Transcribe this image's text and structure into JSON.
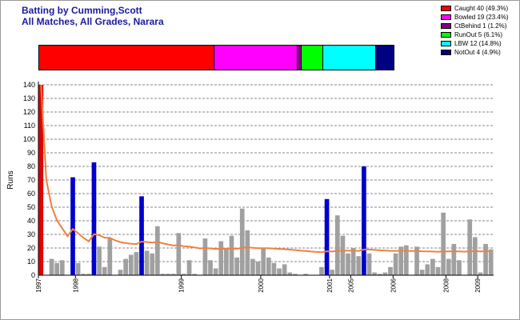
{
  "header": {
    "title_line1": "Batting by Cumming,Scott",
    "title_line2": "All Matches, All Grades, Narara"
  },
  "colors": {
    "title": "#1a1aa0",
    "out_bar": "#0000cc",
    "notout_bar": "#a0a0a0",
    "first_bar": "#e00000",
    "average_line": "#f08040",
    "grid": "#606060"
  },
  "legend": [
    {
      "label": "Caught 40 (49.3%)",
      "color": "#ff0000",
      "percent": 49.3
    },
    {
      "label": "Bowled 19 (23.4%)",
      "color": "#ff00ff",
      "percent": 23.4
    },
    {
      "label": "CtBehind 1 (1.2%)",
      "color": "#800080",
      "percent": 1.2
    },
    {
      "label": "RunOut 5 (6.1%)",
      "color": "#00ff00",
      "percent": 6.1
    },
    {
      "label": "LBW 12 (14.8%)",
      "color": "#00ffff",
      "percent": 14.8
    },
    {
      "label": "NotOut 4 (4.9%)",
      "color": "#000080",
      "percent": 4.9
    }
  ],
  "chart_data": {
    "type": "bar",
    "title": "",
    "xlabel": "",
    "ylabel": "Runs",
    "ylim": [
      0,
      140
    ],
    "yticks": [
      0,
      10,
      20,
      30,
      40,
      50,
      60,
      70,
      80,
      90,
      100,
      110,
      120,
      130,
      140
    ],
    "grid": true,
    "x_labels": [
      {
        "label": "1997",
        "innings": 0
      },
      {
        "label": "1998",
        "innings": 7
      },
      {
        "label": "1999",
        "innings": 27
      },
      {
        "label": "2000",
        "innings": 42
      },
      {
        "label": "2001",
        "innings": 55
      },
      {
        "label": "2005",
        "innings": 59
      },
      {
        "label": "2006",
        "innings": 67
      },
      {
        "label": "2008",
        "innings": 77
      },
      {
        "label": "2009",
        "innings": 83
      }
    ],
    "series": [
      {
        "values": [
          140,
          0,
          12,
          9,
          11,
          0,
          72,
          9,
          1,
          1,
          83,
          21,
          6,
          27,
          0,
          4,
          12,
          15,
          17,
          58,
          18,
          16,
          36,
          1,
          1,
          1,
          31,
          1,
          11,
          1,
          0,
          27,
          11,
          5,
          25,
          19,
          29,
          13,
          49,
          33,
          12,
          10,
          20,
          13,
          9,
          5,
          8,
          2,
          1,
          0,
          1,
          0,
          0,
          6,
          56,
          4,
          44,
          29,
          16,
          20,
          14,
          80,
          16,
          2,
          1,
          2,
          6,
          16,
          21,
          22,
          0,
          21,
          4,
          8,
          12,
          6,
          46,
          12,
          23,
          11,
          0,
          41,
          28,
          2,
          23,
          19
        ]
      },
      {
        "kind": "running_average",
        "values": [
          140,
          70,
          50.7,
          40.3,
          34.5,
          28.7,
          34,
          30.9,
          27.6,
          24.9,
          30.2,
          29.4,
          27.6,
          27.5,
          25.6,
          24.3,
          23.6,
          23.2,
          22.9,
          24.7,
          24.4,
          24,
          24.5,
          23.5,
          22.6,
          21.8,
          22.1,
          21.3,
          21,
          20.4,
          19.7,
          20,
          19.7,
          19.3,
          19.4,
          19.4,
          19.6,
          19.4,
          20.1,
          20.4,
          20.2,
          19.9,
          19.9,
          19.8,
          19.6,
          19.3,
          19.1,
          18.8,
          18.5,
          18.1,
          17.8,
          17.4,
          17.1,
          16.9,
          17.6,
          17.4,
          17.8,
          18,
          18,
          18,
          17.9,
          18.9,
          18.9,
          18.6,
          18.3,
          18.1,
          17.9,
          17.9,
          17.9,
          18,
          17.8,
          17.8,
          17.6,
          17.5,
          17.4,
          17.2,
          17.6,
          17.5,
          17.6,
          17.5,
          17.3,
          17.6,
          17.7,
          17.5,
          17.6,
          17.6
        ]
      }
    ],
    "bar_categories": {
      "first": [
        0
      ],
      "out": [
        6,
        10,
        19,
        54,
        61
      ]
    }
  }
}
